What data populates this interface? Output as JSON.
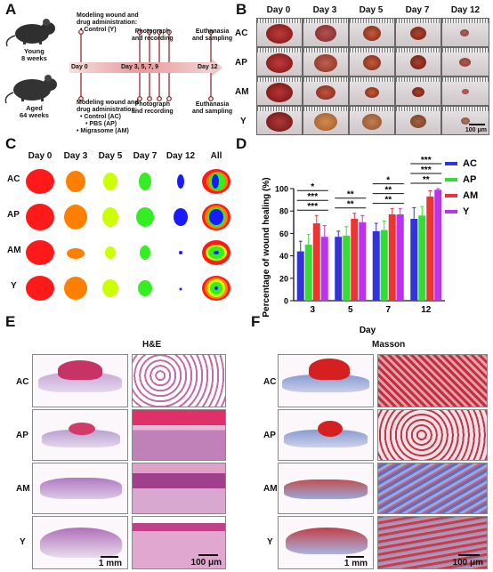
{
  "panels": {
    "a": "A",
    "b": "B",
    "c": "C",
    "d": "D",
    "e": "E",
    "f": "F"
  },
  "panelA": {
    "young": [
      "Young",
      "8 weeks"
    ],
    "aged": [
      "Aged",
      "64 weeks"
    ],
    "top_modeling": [
      "Modeling wound and",
      "drug administration:"
    ],
    "top_control": "• Control (Y)",
    "top_photo": [
      "Photograph",
      "and recording"
    ],
    "top_euth": [
      "Euthanasia",
      "and sampling"
    ],
    "day0": "Day 0",
    "days_mid": "Day 3,  5,  7,  9",
    "day12": "Day 12",
    "bot_modeling": [
      "Modeling wound and",
      "drug administration:"
    ],
    "bot_items": [
      "• Control (AC)",
      "• PBS (AP)",
      "• Migrasome (AM)"
    ],
    "bot_photo": [
      "Photograph",
      "and recording"
    ],
    "bot_euth": [
      "Euthanasia",
      "and sampling"
    ]
  },
  "panelB": {
    "days": [
      "Day 0",
      "Day 3",
      "Day 5",
      "Day 7",
      "Day 12"
    ],
    "groups": [
      "AC",
      "AP",
      "AM",
      "Y"
    ],
    "scale": "100 μm"
  },
  "panelC": {
    "days": [
      "Day 0",
      "Day 3",
      "Day 5",
      "Day 7",
      "Day 12",
      "All"
    ],
    "groups": [
      "AC",
      "AP",
      "AM",
      "Y"
    ],
    "colors": {
      "day0": "#ff1a1a",
      "day3": "#ff8000",
      "day5": "#ccff00",
      "day7": "#33ee22",
      "day12": "#1a1aff"
    }
  },
  "chart_data": {
    "type": "bar",
    "ylabel": "Percentage of wound healing (%)",
    "xlabel": "Day",
    "categories": [
      "3",
      "5",
      "7",
      "12"
    ],
    "ylim": [
      0,
      100
    ],
    "yticks": [
      0,
      20,
      40,
      60,
      80,
      100
    ],
    "series": [
      {
        "name": "AC",
        "color": "#3333dd",
        "values": [
          44,
          57,
          62,
          73
        ],
        "errors": [
          9,
          5,
          7,
          10
        ]
      },
      {
        "name": "AP",
        "color": "#33dd33",
        "values": [
          50,
          58,
          63,
          76
        ],
        "errors": [
          9,
          8,
          8,
          8
        ]
      },
      {
        "name": "AM",
        "color": "#ee3333",
        "values": [
          69,
          73,
          77,
          93
        ],
        "errors": [
          7,
          5,
          5,
          5
        ]
      },
      {
        "name": "Y",
        "color": "#bb33ee",
        "values": [
          57,
          70,
          77,
          99
        ],
        "errors": [
          10,
          6,
          5,
          1
        ]
      }
    ],
    "legend_position": "top-right",
    "significance": [
      {
        "day": "3",
        "marks": [
          "*",
          "***",
          "***"
        ]
      },
      {
        "day": "5",
        "marks": [
          "**",
          "**"
        ]
      },
      {
        "day": "7",
        "marks": [
          "*",
          "**",
          "**"
        ]
      },
      {
        "day": "12",
        "marks": [
          "***",
          "***",
          "**"
        ]
      }
    ]
  },
  "panelE": {
    "title": "H&E",
    "groups": [
      "AC",
      "AP",
      "AM",
      "Y"
    ],
    "scale_left": "1 mm",
    "scale_right": "100 μm"
  },
  "panelF": {
    "title": "Masson",
    "groups": [
      "AC",
      "AP",
      "AM",
      "Y"
    ],
    "scale_left": "1 mm",
    "scale_right": "100 μm"
  }
}
